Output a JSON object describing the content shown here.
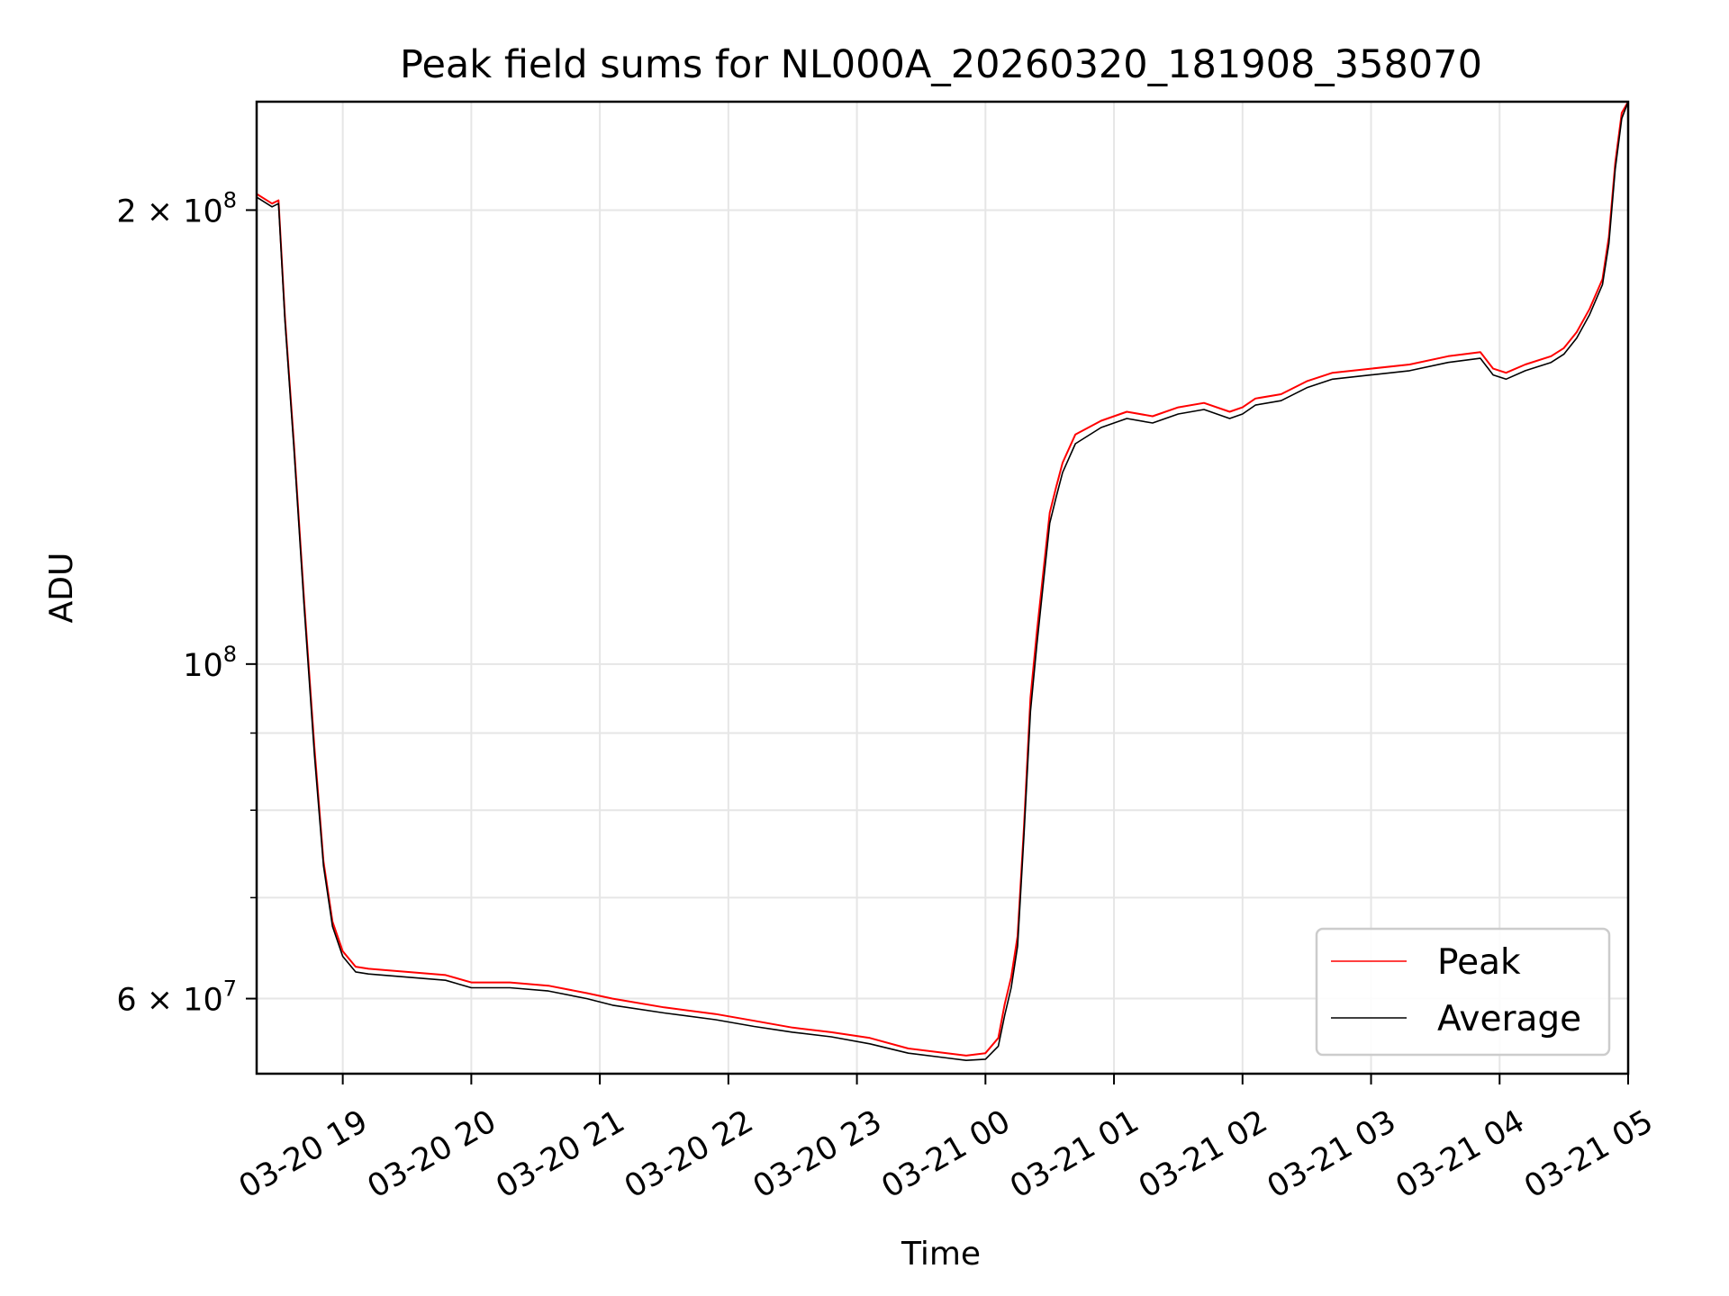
{
  "chart_data": {
    "type": "line",
    "title": "Peak field sums for NL000A_20260320_181908_358070",
    "xlabel": "Time",
    "ylabel": "ADU",
    "yscale": "log",
    "grid": true,
    "legend_location": "lower right",
    "x_unit": "hours since 2026-03-20 18:00",
    "xlim": [
      18.33,
      29.0
    ],
    "ylim": [
      53500000,
      236000000
    ],
    "x_ticks": [
      {
        "x": 19,
        "label": "03-20 19"
      },
      {
        "x": 20,
        "label": "03-20 20"
      },
      {
        "x": 21,
        "label": "03-20 21"
      },
      {
        "x": 22,
        "label": "03-20 22"
      },
      {
        "x": 23,
        "label": "03-20 23"
      },
      {
        "x": 24,
        "label": "03-21 00"
      },
      {
        "x": 25,
        "label": "03-21 01"
      },
      {
        "x": 26,
        "label": "03-21 02"
      },
      {
        "x": 27,
        "label": "03-21 03"
      },
      {
        "x": 28,
        "label": "03-21 04"
      },
      {
        "x": 29,
        "label": "03-21 05"
      }
    ],
    "y_ticks": [
      {
        "value": 200000000,
        "label_base": "2 × 10",
        "label_exp": "8"
      },
      {
        "value": 100000000,
        "label_base": "10",
        "label_exp": "8"
      },
      {
        "value": 60000000,
        "label_base": "6 × 10",
        "label_exp": "7"
      }
    ],
    "y_minor_ticks": [
      70000000,
      80000000,
      90000000
    ],
    "series": [
      {
        "name": "Peak",
        "color": "#ff0000",
        "x": [
          18.33,
          18.45,
          18.5,
          18.55,
          18.62,
          18.7,
          18.78,
          18.85,
          18.92,
          19.0,
          19.1,
          19.2,
          19.5,
          19.8,
          20.0,
          20.3,
          20.6,
          20.9,
          21.1,
          21.5,
          21.9,
          22.2,
          22.5,
          22.8,
          23.1,
          23.4,
          23.7,
          23.85,
          24.0,
          24.1,
          24.15,
          24.2,
          24.25,
          24.3,
          24.35,
          24.4,
          24.45,
          24.5,
          24.55,
          24.6,
          24.7,
          24.9,
          25.1,
          25.3,
          25.5,
          25.7,
          25.9,
          26.0,
          26.1,
          26.3,
          26.5,
          26.7,
          27.0,
          27.3,
          27.6,
          27.85,
          27.95,
          28.05,
          28.2,
          28.4,
          28.5,
          28.6,
          28.7,
          28.8,
          28.85,
          28.9,
          28.95,
          29.0
        ],
        "y": [
          205000000,
          202000000,
          203000000,
          170000000,
          140000000,
          110000000,
          88000000,
          74000000,
          67500000,
          64500000,
          63000000,
          62800000,
          62500000,
          62200000,
          61500000,
          61500000,
          61200000,
          60500000,
          60000000,
          59200000,
          58600000,
          58000000,
          57400000,
          57000000,
          56500000,
          55600000,
          55200000,
          55000000,
          55200000,
          56500000,
          59500000,
          62000000,
          66000000,
          78000000,
          95000000,
          105000000,
          115000000,
          126000000,
          131000000,
          136000000,
          142000000,
          145000000,
          147000000,
          146000000,
          148000000,
          149000000,
          147000000,
          148000000,
          150000000,
          151000000,
          154000000,
          156000000,
          157000000,
          158000000,
          160000000,
          161000000,
          157000000,
          156000000,
          158000000,
          160000000,
          162000000,
          166000000,
          172000000,
          180000000,
          192000000,
          215000000,
          232000000,
          236000000
        ]
      },
      {
        "name": "Average",
        "color": "#000000",
        "x": [
          18.33,
          18.45,
          18.5,
          18.55,
          18.62,
          18.7,
          18.78,
          18.85,
          18.92,
          19.0,
          19.1,
          19.2,
          19.5,
          19.8,
          20.0,
          20.3,
          20.6,
          20.9,
          21.1,
          21.5,
          21.9,
          22.2,
          22.5,
          22.8,
          23.1,
          23.4,
          23.7,
          23.85,
          24.0,
          24.1,
          24.15,
          24.2,
          24.25,
          24.3,
          24.35,
          24.4,
          24.45,
          24.5,
          24.55,
          24.6,
          24.7,
          24.9,
          25.1,
          25.3,
          25.5,
          25.7,
          25.9,
          26.0,
          26.1,
          26.3,
          26.5,
          26.7,
          27.0,
          27.3,
          27.6,
          27.85,
          27.95,
          28.05,
          28.2,
          28.4,
          28.5,
          28.6,
          28.7,
          28.8,
          28.85,
          28.9,
          28.95,
          29.0
        ],
        "y": [
          204000000,
          201000000,
          202000000,
          169000000,
          139000000,
          109000000,
          87000000,
          73500000,
          67000000,
          64000000,
          62500000,
          62300000,
          62000000,
          61700000,
          61000000,
          61000000,
          60700000,
          60000000,
          59400000,
          58700000,
          58100000,
          57500000,
          57000000,
          56600000,
          56000000,
          55200000,
          54800000,
          54600000,
          54700000,
          55800000,
          58500000,
          61000000,
          65000000,
          77000000,
          93000000,
          103000000,
          113000000,
          124000000,
          129000000,
          134000000,
          140000000,
          143500000,
          145500000,
          144500000,
          146500000,
          147500000,
          145500000,
          146500000,
          148500000,
          149500000,
          152500000,
          154500000,
          155500000,
          156500000,
          158500000,
          159500000,
          155500000,
          154500000,
          156500000,
          158500000,
          160500000,
          164500000,
          170500000,
          178500000,
          190000000,
          213000000,
          230000000,
          236000000
        ]
      }
    ]
  }
}
